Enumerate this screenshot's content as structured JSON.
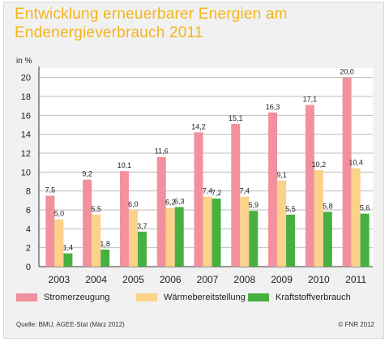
{
  "title_line1": "Entwicklung erneuerbarer Energien am",
  "title_line2": "Endenergieverbrauch 2011",
  "source": "Quelle: BMU, AGEE-Stat (März 2012)",
  "copyright": "© FNR 2012",
  "colors": {
    "title": "#f4b41a",
    "strom": "#f2909e",
    "waerme": "#fcd28b",
    "kraft": "#46b040"
  },
  "chart_data": {
    "type": "bar",
    "title": "",
    "xlabel": "",
    "ylabel": "in %",
    "ylim": [
      0,
      21
    ],
    "yticks": [
      0,
      2,
      4,
      6,
      8,
      10,
      12,
      14,
      16,
      18,
      20
    ],
    "categories": [
      "2003",
      "2004",
      "2005",
      "2006",
      "2007",
      "2008",
      "2009",
      "2010",
      "2011"
    ],
    "series": [
      {
        "name": "Stromerzeugung",
        "values": [
          7.5,
          9.2,
          10.1,
          11.6,
          14.2,
          15.1,
          16.3,
          17.1,
          20.0
        ],
        "labels": [
          "7,5",
          "9,2",
          "10,1",
          "11,6",
          "14,2",
          "15,1",
          "16,3",
          "17,1",
          "20,0"
        ]
      },
      {
        "name": "Wärmebereitstellung",
        "values": [
          5.0,
          5.5,
          6.0,
          6.2,
          7.4,
          7.4,
          9.1,
          10.2,
          10.4
        ],
        "labels": [
          "5,0",
          "5,5",
          "6,0",
          "6,2",
          "7,4",
          "7,4",
          "9,1",
          "10,2",
          "10,4"
        ]
      },
      {
        "name": "Kraftstoffverbrauch",
        "values": [
          1.4,
          1.8,
          3.7,
          6.3,
          7.2,
          5.9,
          5.5,
          5.8,
          5.6
        ],
        "labels": [
          "1,4",
          "1,8",
          "3,7",
          "6,3",
          "7,2",
          "5,9",
          "5,5",
          "5,8",
          "5,6"
        ]
      }
    ],
    "grid": true,
    "legend": "bottom"
  }
}
